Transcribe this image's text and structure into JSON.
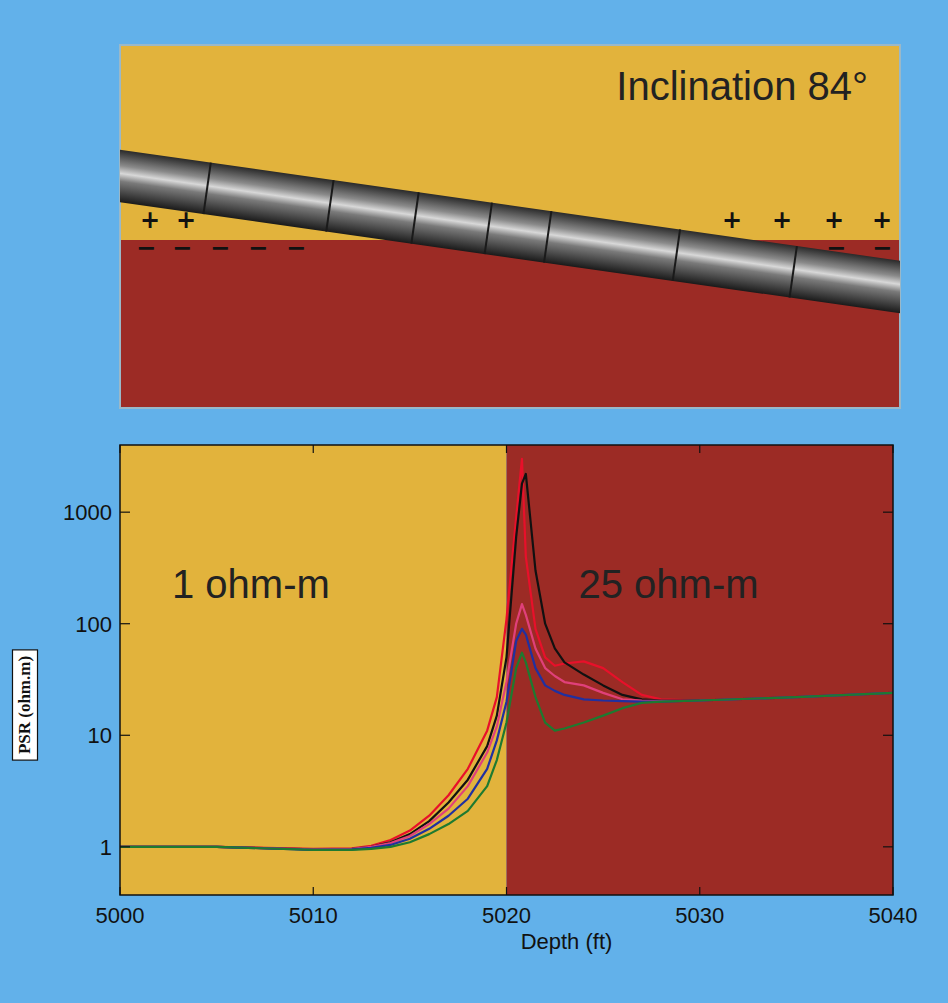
{
  "diagram": {
    "title": "Inclination 84°",
    "signs": [
      "+",
      "−"
    ],
    "upper_color": "#e2b33c",
    "lower_color": "#9c2b25"
  },
  "chart_data": {
    "type": "line",
    "log": "y",
    "x_label": "Depth (ft)",
    "y_label": "PSR (ohm.m)",
    "xlim": [
      5000,
      5040
    ],
    "xticks": [
      5000,
      5010,
      5020,
      5030,
      5040
    ],
    "ylim": [
      0.37,
      4000
    ],
    "yticks": [
      1,
      10,
      100,
      1000
    ],
    "grid": false,
    "regions": [
      {
        "label": "1 ohm-m",
        "from": 5000,
        "to": 5020,
        "color": "#e2b33c"
      },
      {
        "label": "25 ohm-m",
        "from": 5020,
        "to": 5040,
        "color": "#9c2b25"
      }
    ],
    "x": [
      5000,
      5005,
      5010,
      5012,
      5013,
      5014,
      5015,
      5016,
      5017,
      5018,
      5019,
      5019.5,
      5020,
      5020.5,
      5020.8,
      5021,
      5021.5,
      5022,
      5022.5,
      5023,
      5024,
      5025,
      5026,
      5027,
      5028,
      5030,
      5035,
      5040
    ],
    "series": [
      {
        "color": "#e8102a",
        "values": [
          1,
          1,
          0.96,
          0.97,
          1.02,
          1.15,
          1.4,
          1.9,
          2.9,
          5,
          11,
          22,
          110,
          900,
          3000,
          400,
          90,
          50,
          42,
          44,
          46,
          40,
          30,
          23,
          21,
          20.5,
          22,
          24
        ]
      },
      {
        "color": "#111111",
        "values": [
          1,
          1,
          0.95,
          0.96,
          1,
          1.1,
          1.3,
          1.7,
          2.5,
          4,
          8,
          15,
          50,
          600,
          1800,
          2200,
          300,
          100,
          60,
          45,
          35,
          28,
          23,
          21,
          20.5,
          20.5,
          22,
          24
        ]
      },
      {
        "color": "#e0407a",
        "values": [
          1,
          1,
          0.95,
          0.96,
          1,
          1.08,
          1.25,
          1.6,
          2.2,
          3.5,
          7,
          12,
          30,
          100,
          150,
          120,
          60,
          40,
          34,
          30,
          28,
          24,
          21,
          20.5,
          20.3,
          20.5,
          22,
          24
        ]
      },
      {
        "color": "#2030a0",
        "values": [
          1,
          1,
          0.94,
          0.95,
          0.98,
          1.04,
          1.18,
          1.45,
          1.9,
          2.7,
          5,
          9,
          20,
          70,
          90,
          80,
          40,
          28,
          25,
          23,
          21,
          20.5,
          20.2,
          20,
          20,
          20.5,
          22,
          24
        ]
      },
      {
        "color": "#1e7a30",
        "values": [
          1,
          1,
          0.94,
          0.94,
          0.96,
          1.0,
          1.1,
          1.3,
          1.6,
          2.1,
          3.5,
          6,
          13,
          40,
          55,
          45,
          22,
          13,
          11,
          11.5,
          13,
          15,
          17.5,
          19.5,
          20,
          20.5,
          22,
          24
        ]
      }
    ]
  }
}
